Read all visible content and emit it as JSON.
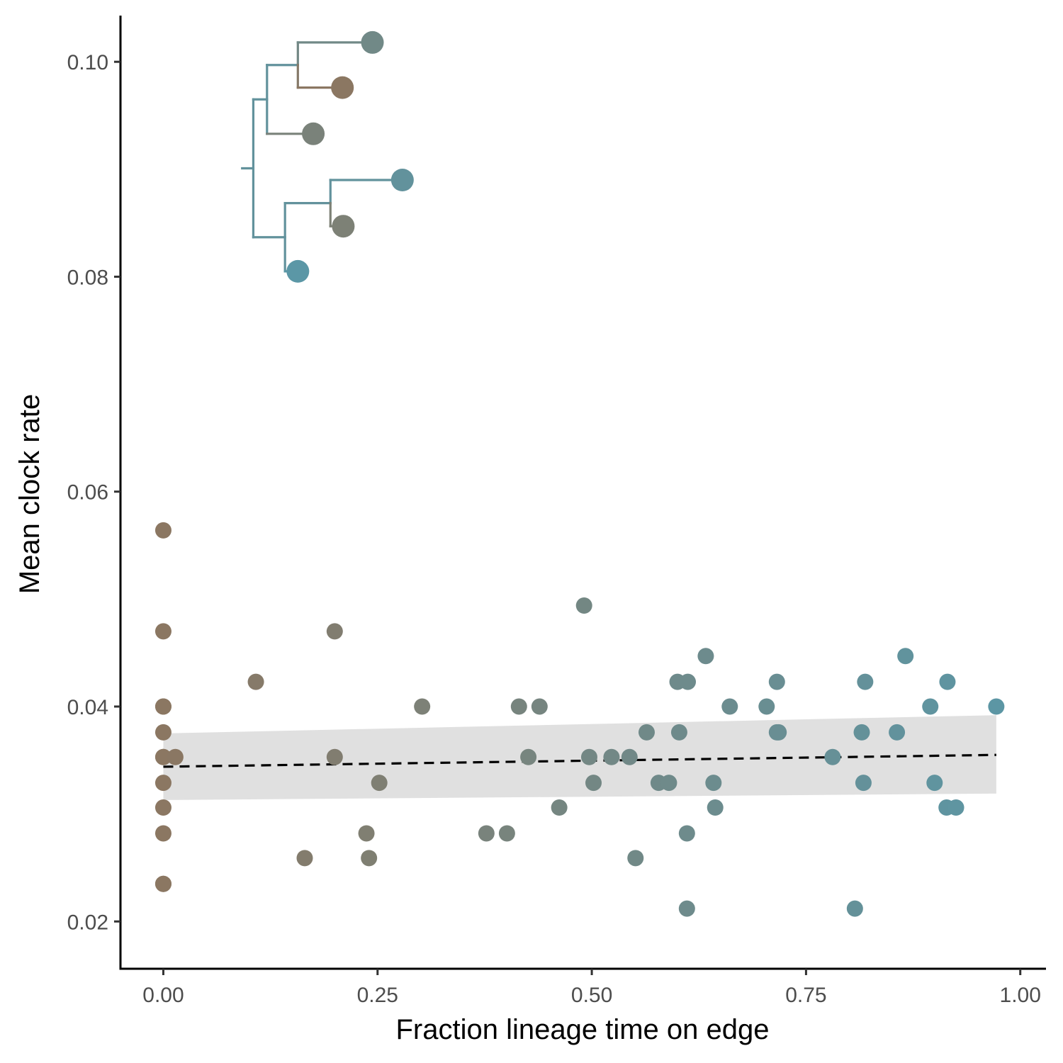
{
  "chart_data": {
    "type": "scatter",
    "title": "",
    "xlabel": "Fraction lineage time on edge",
    "ylabel": "Mean clock rate",
    "xlim": [
      -0.05,
      1.03
    ],
    "ylim": [
      0.0156,
      0.1043
    ],
    "xticks": [
      0,
      0.25,
      0.5,
      0.75,
      1
    ],
    "xtick_labels": [
      "0.00",
      "0.25",
      "0.50",
      "0.75",
      "1.00"
    ],
    "yticks": [
      0.02,
      0.04,
      0.06,
      0.08,
      0.1
    ],
    "ytick_labels": [
      "0.02",
      "0.04",
      "0.06",
      "0.08",
      "0.10"
    ],
    "grid": false,
    "legend": "none",
    "color_scale": {
      "low": "#8b7762",
      "high": "#5b97a6"
    },
    "points": [
      {
        "x": 0.0,
        "y": 0.0564
      },
      {
        "x": 0.0,
        "y": 0.047
      },
      {
        "x": 0.0,
        "y": 0.04
      },
      {
        "x": 0.0,
        "y": 0.04
      },
      {
        "x": 0.0,
        "y": 0.0376
      },
      {
        "x": 0.0,
        "y": 0.0353
      },
      {
        "x": 0.0,
        "y": 0.0353
      },
      {
        "x": 0.0,
        "y": 0.0329
      },
      {
        "x": 0.0,
        "y": 0.0306
      },
      {
        "x": 0.0,
        "y": 0.0282
      },
      {
        "x": 0.0,
        "y": 0.0235
      },
      {
        "x": 0.0,
        "y": 0.0235
      },
      {
        "x": 0.014,
        "y": 0.0353
      },
      {
        "x": 0.108,
        "y": 0.0423
      },
      {
        "x": 0.165,
        "y": 0.0259
      },
      {
        "x": 0.2,
        "y": 0.047
      },
      {
        "x": 0.2,
        "y": 0.0353
      },
      {
        "x": 0.237,
        "y": 0.0282
      },
      {
        "x": 0.24,
        "y": 0.0259
      },
      {
        "x": 0.252,
        "y": 0.0329
      },
      {
        "x": 0.302,
        "y": 0.04
      },
      {
        "x": 0.377,
        "y": 0.0282
      },
      {
        "x": 0.401,
        "y": 0.0282
      },
      {
        "x": 0.415,
        "y": 0.04
      },
      {
        "x": 0.426,
        "y": 0.0353
      },
      {
        "x": 0.439,
        "y": 0.04
      },
      {
        "x": 0.462,
        "y": 0.0306
      },
      {
        "x": 0.491,
        "y": 0.0494
      },
      {
        "x": 0.497,
        "y": 0.0353
      },
      {
        "x": 0.502,
        "y": 0.0329
      },
      {
        "x": 0.523,
        "y": 0.0353
      },
      {
        "x": 0.544,
        "y": 0.0353
      },
      {
        "x": 0.551,
        "y": 0.0259
      },
      {
        "x": 0.564,
        "y": 0.0376
      },
      {
        "x": 0.578,
        "y": 0.0329
      },
      {
        "x": 0.59,
        "y": 0.0329
      },
      {
        "x": 0.6,
        "y": 0.0423
      },
      {
        "x": 0.602,
        "y": 0.0376
      },
      {
        "x": 0.611,
        "y": 0.0282
      },
      {
        "x": 0.611,
        "y": 0.0212
      },
      {
        "x": 0.612,
        "y": 0.0423
      },
      {
        "x": 0.633,
        "y": 0.0447
      },
      {
        "x": 0.642,
        "y": 0.0329
      },
      {
        "x": 0.644,
        "y": 0.0306
      },
      {
        "x": 0.661,
        "y": 0.04
      },
      {
        "x": 0.704,
        "y": 0.04
      },
      {
        "x": 0.716,
        "y": 0.0423
      },
      {
        "x": 0.716,
        "y": 0.0376
      },
      {
        "x": 0.718,
        "y": 0.0376
      },
      {
        "x": 0.781,
        "y": 0.0353
      },
      {
        "x": 0.807,
        "y": 0.0212
      },
      {
        "x": 0.815,
        "y": 0.0376
      },
      {
        "x": 0.817,
        "y": 0.0329
      },
      {
        "x": 0.819,
        "y": 0.0423
      },
      {
        "x": 0.856,
        "y": 0.0376
      },
      {
        "x": 0.866,
        "y": 0.0447
      },
      {
        "x": 0.895,
        "y": 0.04
      },
      {
        "x": 0.9,
        "y": 0.0329
      },
      {
        "x": 0.914,
        "y": 0.0306
      },
      {
        "x": 0.915,
        "y": 0.0423
      },
      {
        "x": 0.925,
        "y": 0.0306
      },
      {
        "x": 0.972,
        "y": 0.04
      }
    ],
    "trend": {
      "style": "dashed",
      "x": [
        0.0,
        0.972
      ],
      "y": [
        0.0344,
        0.0355
      ],
      "ci_lower": [
        0.0313,
        0.0319
      ],
      "ci_upper": [
        0.0375,
        0.0392
      ]
    },
    "inset_tree": {
      "tips": [
        {
          "x": 0.244,
          "y": 0.1018,
          "t": 0.55
        },
        {
          "x": 0.209,
          "y": 0.0976,
          "t": 0.0
        },
        {
          "x": 0.175,
          "y": 0.0933,
          "t": 0.35
        },
        {
          "x": 0.279,
          "y": 0.089,
          "t": 0.85
        },
        {
          "x": 0.21,
          "y": 0.0847,
          "t": 0.3
        },
        {
          "x": 0.157,
          "y": 0.0805,
          "t": 1.0
        }
      ]
    }
  }
}
